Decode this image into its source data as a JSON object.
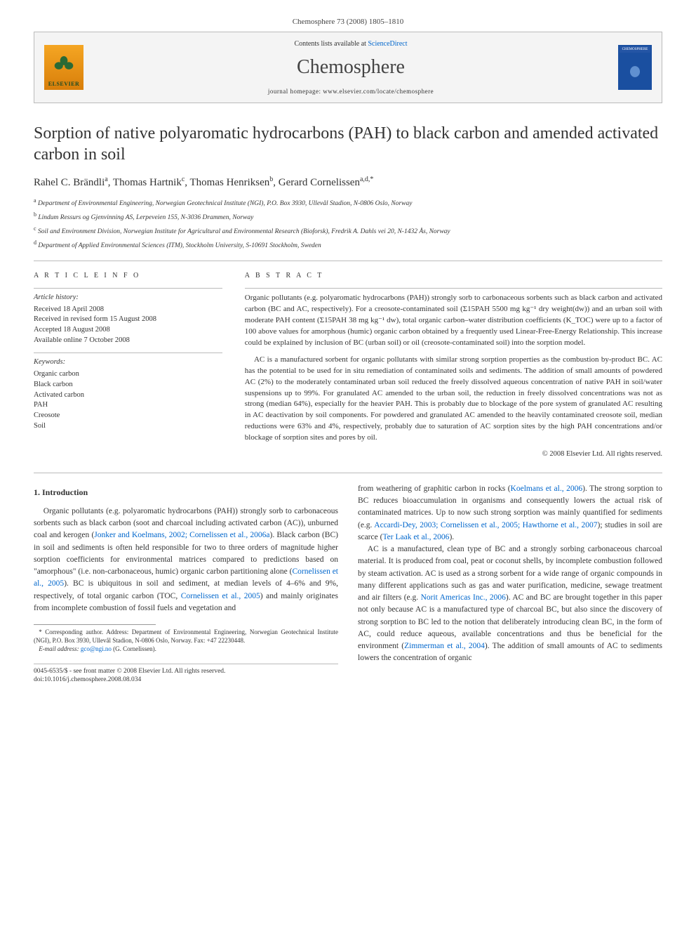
{
  "journal_ref": "Chemosphere 73 (2008) 1805–1810",
  "header": {
    "publisher": "ELSEVIER",
    "contents_prefix": "Contents lists available at ",
    "contents_link": "ScienceDirect",
    "journal_name": "Chemosphere",
    "homepage_prefix": "journal homepage: ",
    "homepage_url": "www.elsevier.com/locate/chemosphere"
  },
  "title": "Sorption of native polyaromatic hydrocarbons (PAH) to black carbon and amended activated carbon in soil",
  "authors_html": "Rahel C. Brändli<sup>a</sup>, Thomas Hartnik<sup>c</sup>, Thomas Henriksen<sup>b</sup>, Gerard Cornelissen<sup>a,d,*</sup>",
  "affiliations": [
    "<sup>a</sup> Department of Environmental Engineering, Norwegian Geotechnical Institute (NGI), P.O. Box 3930, Ullevål Stadion, N-0806 Oslo, Norway",
    "<sup>b</sup> Lindum Ressurs og Gjenvinning AS, Lerpeveien 155, N-3036 Drammen, Norway",
    "<sup>c</sup> Soil and Environment Division, Norwegian Institute for Agricultural and Environmental Research (Bioforsk), Fredrik A. Dahls vei 20, N-1432 Ås, Norway",
    "<sup>d</sup> Department of Applied Environmental Sciences (ITM), Stockholm University, S-10691 Stockholm, Sweden"
  ],
  "info": {
    "label": "A R T I C L E   I N F O",
    "history_label": "Article history:",
    "history": [
      "Received 18 April 2008",
      "Received in revised form 15 August 2008",
      "Accepted 18 August 2008",
      "Available online 7 October 2008"
    ],
    "kw_label": "Keywords:",
    "keywords": [
      "Organic carbon",
      "Black carbon",
      "Activated carbon",
      "PAH",
      "Creosote",
      "Soil"
    ]
  },
  "abstract": {
    "label": "A B S T R A C T",
    "p1": "Organic pollutants (e.g. polyaromatic hydrocarbons (PAH)) strongly sorb to carbonaceous sorbents such as black carbon and activated carbon (BC and AC, respectively). For a creosote-contaminated soil (Σ15PAH 5500 mg kg⁻¹ dry weight(dw)) and an urban soil with moderate PAH content (Σ15PAH 38 mg kg⁻¹ dw), total organic carbon–water distribution coefficients (K_TOC) were up to a factor of 100 above values for amorphous (humic) organic carbon obtained by a frequently used Linear-Free-Energy Relationship. This increase could be explained by inclusion of BC (urban soil) or oil (creosote-contaminated soil) into the sorption model.",
    "p2": "AC is a manufactured sorbent for organic pollutants with similar strong sorption properties as the combustion by-product BC. AC has the potential to be used for in situ remediation of contaminated soils and sediments. The addition of small amounts of powdered AC (2%) to the moderately contaminated urban soil reduced the freely dissolved aqueous concentration of native PAH in soil/water suspensions up to 99%. For granulated AC amended to the urban soil, the reduction in freely dissolved concentrations was not as strong (median 64%), especially for the heavier PAH. This is probably due to blockage of the pore system of granulated AC resulting in AC deactivation by soil components. For powdered and granulated AC amended to the heavily contaminated creosote soil, median reductions were 63% and 4%, respectively, probably due to saturation of AC sorption sites by the high PAH concentrations and/or blockage of sorption sites and pores by oil.",
    "copyright": "© 2008 Elsevier Ltd. All rights reserved."
  },
  "body": {
    "intro_heading": "1. Introduction",
    "p1": "Organic pollutants (e.g. polyaromatic hydrocarbons (PAH)) strongly sorb to carbonaceous sorbents such as black carbon (soot and charcoal including activated carbon (AC)), unburned coal and kerogen (<a>Jonker and Koelmans, 2002; Cornelissen et al., 2006a</a>). Black carbon (BC) in soil and sediments is often held responsible for two to three orders of magnitude higher sorption coefficients for environmental matrices compared to predictions based on \"amorphous\" (i.e. non-carbonaceous, humic) organic carbon partitioning alone (<a>Cornelissen et al., 2005</a>). BC is ubiquitous in soil and sediment, at median levels of 4–6% and 9%, respectively, of total organic carbon (TOC, <a>Cornelissen et al., 2005</a>) and mainly originates from incomplete combustion of fossil fuels and vegetation and",
    "p2": "from weathering of graphitic carbon in rocks (<a>Koelmans et al., 2006</a>). The strong sorption to BC reduces bioaccumulation in organisms and consequently lowers the actual risk of contaminated matrices. Up to now such strong sorption was mainly quantified for sediments (e.g. <a>Accardi-Dey, 2003; Cornelissen et al., 2005; Hawthorne et al., 2007</a>); studies in soil are scarce (<a>Ter Laak et al., 2006</a>).",
    "p3": "AC is a manufactured, clean type of BC and a strongly sorbing carbonaceous charcoal material. It is produced from coal, peat or coconut shells, by incomplete combustion followed by steam activation. AC is used as a strong sorbent for a wide range of organic compounds in many different applications such as gas and water purification, medicine, sewage treatment and air filters (e.g. <a>Norit Americas Inc., 2006</a>). AC and BC are brought together in this paper not only because AC is a manufactured type of charcoal BC, but also since the discovery of strong sorption to BC led to the notion that deliberately introducing clean BC, in the form of AC, could reduce aqueous, available concentrations and thus be beneficial for the environment (<a>Zimmerman et al., 2004</a>). The addition of small amounts of AC to sediments lowers the concentration of organic"
  },
  "footnote": {
    "corr": "* Corresponding author. Address: Department of Environmental Engineering, Norwegian Geotechnical Institute (NGI), P.O. Box 3930, Ullevål Stadion, N-0806 Oslo, Norway. Fax: +47 22230448.",
    "email_label": "E-mail address: ",
    "email": "gco@ngi.no",
    "email_suffix": " (G. Cornelissen)."
  },
  "bottom": {
    "issn": "0045-6535/$ - see front matter © 2008 Elsevier Ltd. All rights reserved.",
    "doi": "doi:10.1016/j.chemosphere.2008.08.034"
  },
  "colors": {
    "link": "#0066cc",
    "border": "#bbbbbb",
    "header_bg": "#f4f4f4",
    "text": "#333333"
  }
}
